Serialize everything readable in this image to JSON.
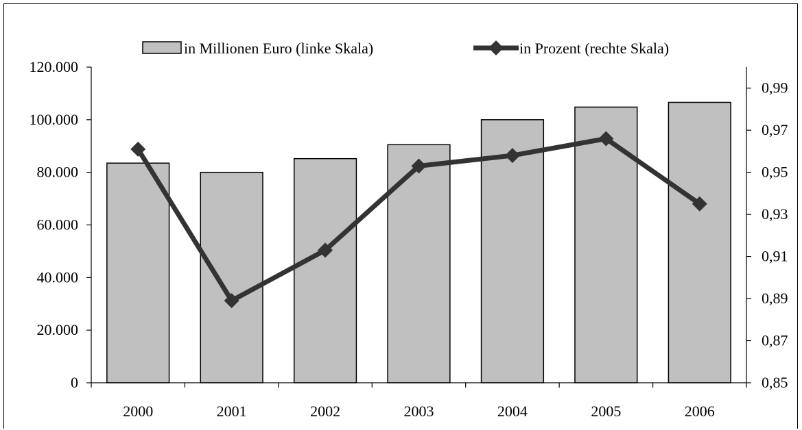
{
  "chart_data": {
    "type": "bar",
    "categories": [
      "2000",
      "2001",
      "2002",
      "2003",
      "2004",
      "2005",
      "2006"
    ],
    "series": [
      {
        "name": "in Millionen Euro (linke Skala)",
        "type": "bar",
        "axis": "left",
        "values": [
          83500,
          80000,
          85200,
          90500,
          100000,
          104800,
          106600
        ],
        "color": "#c0c0c0"
      },
      {
        "name": "in Prozent (rechte Skala)",
        "type": "line",
        "axis": "right",
        "values": [
          0.961,
          0.889,
          0.913,
          0.953,
          0.958,
          0.966,
          0.935
        ],
        "color": "#333333",
        "marker": "diamond"
      }
    ],
    "y_left": {
      "ylim": [
        0,
        120000
      ],
      "ticks": [
        0,
        20000,
        40000,
        60000,
        80000,
        100000,
        120000
      ],
      "tick_labels": [
        "0",
        "20.000",
        "40.000",
        "60.000",
        "80.000",
        "100.000",
        "120.000"
      ]
    },
    "y_right": {
      "ylim": [
        0.85,
        1.0
      ],
      "ticks": [
        0.85,
        0.87,
        0.89,
        0.91,
        0.93,
        0.95,
        0.97,
        0.99
      ],
      "tick_labels": [
        "0,85",
        "0,87",
        "0,89",
        "0,91",
        "0,93",
        "0,95",
        "0,97",
        "0,99"
      ]
    },
    "title": "",
    "xlabel": "",
    "grid": false,
    "legend_position": "top"
  }
}
